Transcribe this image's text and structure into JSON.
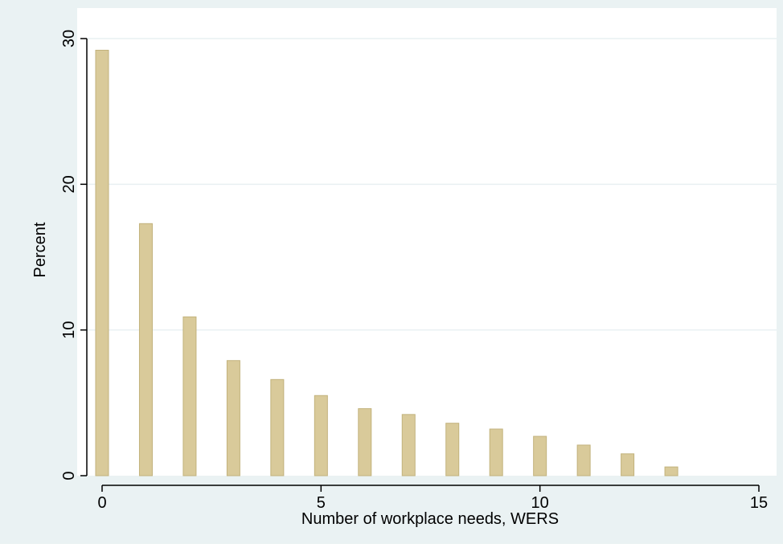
{
  "colors": {
    "outer_background": "#eaf2f3",
    "plot_background": "#ffffff",
    "bar_fill": "#d9ca9a",
    "bar_stroke": "#c2b27c",
    "gridline": "#e9f0f2",
    "axis": "#000000"
  },
  "chart_data": {
    "type": "bar",
    "title": "",
    "xlabel": "Number of workplace needs, WERS",
    "ylabel": "Percent",
    "x": [
      0,
      1,
      2,
      3,
      4,
      5,
      6,
      7,
      8,
      9,
      10,
      11,
      12,
      13
    ],
    "values": [
      29.2,
      17.3,
      10.9,
      7.9,
      6.6,
      5.5,
      4.6,
      4.2,
      3.6,
      3.2,
      2.7,
      2.1,
      1.5,
      0.6
    ],
    "xlim": [
      0,
      15
    ],
    "ylim": [
      0,
      30
    ],
    "xticks": [
      0,
      5,
      10,
      15
    ],
    "yticks": [
      0,
      10,
      20,
      30
    ],
    "xtick_labels": [
      "0",
      "5",
      "10",
      "15"
    ],
    "ytick_labels": [
      "0",
      "10",
      "20",
      "30"
    ],
    "grid": "horizontal"
  }
}
